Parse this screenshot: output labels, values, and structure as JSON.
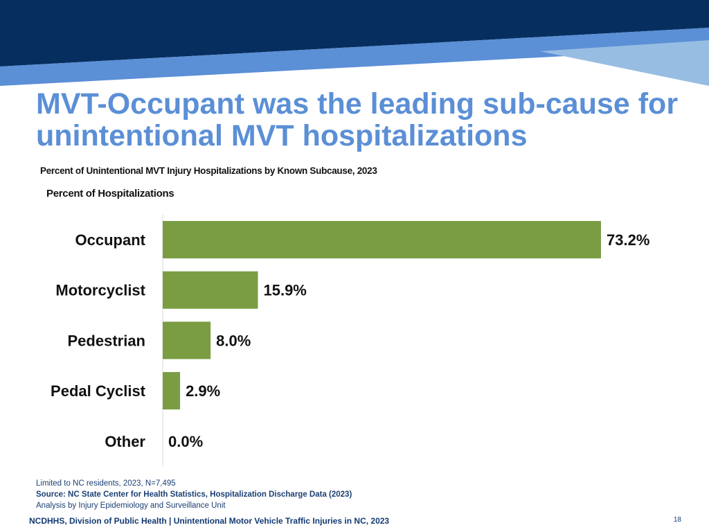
{
  "slide": {
    "title": "MVT-Occupant was the leading sub-cause for unintentional MVT hospitalizations",
    "footer": "NCDHHS, Division of Public Health | Unintentional Motor Vehicle Traffic Injuries in NC, 2023",
    "page_number": "18"
  },
  "notes": {
    "line1": "Limited to NC residents, 2023, N=7,495",
    "source": "Source: NC State Center for Health Statistics, Hospitalization Discharge Data (2023)",
    "line3": "Analysis by Injury Epidemiology and Surveillance Unit"
  },
  "colors": {
    "dark_navy": "#062f60",
    "accent_blue": "#5b8fd6",
    "light_blue": "#98bde2",
    "bar_green": "#7a9d43",
    "axis_gray": "#d9d9d9"
  },
  "chart_data": {
    "type": "bar",
    "orientation": "horizontal",
    "title": "Percent of Unintentional MVT Injury Hospitalizations by Known Subcause, 2023",
    "xlabel": "",
    "ylabel": "Percent of Hospitalizations",
    "xlim": [
      0,
      73.2
    ],
    "categories": [
      "Occupant",
      "Motorcyclist",
      "Pedestrian",
      "Pedal Cyclist",
      "Other"
    ],
    "values": [
      73.2,
      15.9,
      8.0,
      2.9,
      0.0
    ],
    "data_labels": [
      "73.2%",
      "15.9%",
      "8.0%",
      "2.9%",
      "0.0%"
    ],
    "grid": false,
    "legend": "none"
  }
}
